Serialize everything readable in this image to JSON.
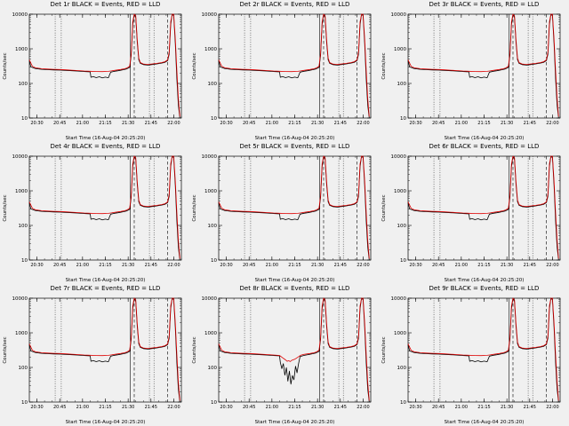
{
  "page": {
    "background": "#f0f0f0"
  },
  "chart_data": {
    "type": "line",
    "layout": "3x3-grid",
    "xlabel": "Start Time (16-Aug-04 20:25:20)",
    "ylabel": "Counts/sec",
    "yscale": "log",
    "ylim": [
      10,
      10000
    ],
    "y_ticks": [
      10,
      100,
      1000,
      10000
    ],
    "x_minutes_range": [
      0,
      100
    ],
    "x_ticks": [
      {
        "t": 5,
        "label": "20:30"
      },
      {
        "t": 20,
        "label": "20:45"
      },
      {
        "t": 35,
        "label": "21:00"
      },
      {
        "t": 50,
        "label": "21:15"
      },
      {
        "t": 65,
        "label": "21:30"
      },
      {
        "t": 80,
        "label": "21:45"
      },
      {
        "t": 95,
        "label": "22:00"
      }
    ],
    "legend": {
      "black": "Events",
      "red": "LLD"
    },
    "colors": {
      "events": "#000000",
      "lld": "#dd0000"
    },
    "ref_lines": [
      {
        "t": 17,
        "style": "dotted"
      },
      {
        "t": 21,
        "style": "dotted"
      },
      {
        "t": 66.5,
        "style": "solid"
      },
      {
        "t": 69,
        "style": "dashed"
      },
      {
        "t": 79,
        "style": "dotted"
      },
      {
        "t": 82,
        "style": "dotted"
      },
      {
        "t": 91,
        "style": "dashed"
      }
    ],
    "series_library": {
      "events_base": [
        [
          0,
          450
        ],
        [
          1,
          300
        ],
        [
          4,
          270
        ],
        [
          8,
          255
        ],
        [
          12,
          250
        ],
        [
          16,
          246
        ],
        [
          20,
          243
        ],
        [
          24,
          238
        ],
        [
          28,
          233
        ],
        [
          32,
          227
        ],
        [
          36,
          221
        ],
        [
          40,
          216
        ],
        [
          40.5,
          150
        ],
        [
          42,
          158
        ],
        [
          44,
          147
        ],
        [
          46,
          156
        ],
        [
          48,
          144
        ],
        [
          50,
          152
        ],
        [
          52,
          146
        ],
        [
          53.5,
          212
        ],
        [
          56,
          224
        ],
        [
          58,
          231
        ],
        [
          60,
          240
        ],
        [
          62,
          250
        ],
        [
          64,
          262
        ],
        [
          66,
          292
        ],
        [
          67,
          650
        ],
        [
          68,
          5000
        ],
        [
          69,
          12000
        ],
        [
          70,
          8000
        ],
        [
          71,
          1500
        ],
        [
          72,
          480
        ],
        [
          73,
          380
        ],
        [
          75,
          350
        ],
        [
          78,
          340
        ],
        [
          81,
          352
        ],
        [
          84,
          366
        ],
        [
          87,
          386
        ],
        [
          89,
          402
        ],
        [
          91,
          455
        ],
        [
          92,
          700
        ],
        [
          93,
          5000
        ],
        [
          94,
          12000
        ],
        [
          95,
          9000
        ],
        [
          96,
          1400
        ],
        [
          97,
          140
        ],
        [
          98,
          24
        ],
        [
          99,
          9
        ]
      ],
      "lld_base": [
        [
          0,
          480
        ],
        [
          2,
          312
        ],
        [
          4,
          282
        ],
        [
          8,
          266
        ],
        [
          12,
          261
        ],
        [
          16,
          256
        ],
        [
          20,
          252
        ],
        [
          24,
          247
        ],
        [
          28,
          241
        ],
        [
          32,
          235
        ],
        [
          36,
          229
        ],
        [
          40,
          225
        ],
        [
          44,
          221
        ],
        [
          48,
          219
        ],
        [
          52,
          223
        ],
        [
          54,
          230
        ],
        [
          56,
          238
        ],
        [
          58,
          245
        ],
        [
          60,
          252
        ],
        [
          62,
          262
        ],
        [
          64,
          276
        ],
        [
          66,
          315
        ],
        [
          67,
          750
        ],
        [
          68,
          6000
        ],
        [
          69,
          13000
        ],
        [
          70,
          9000
        ],
        [
          71,
          1800
        ],
        [
          72,
          540
        ],
        [
          73,
          400
        ],
        [
          75,
          364
        ],
        [
          78,
          354
        ],
        [
          81,
          366
        ],
        [
          84,
          380
        ],
        [
          87,
          400
        ],
        [
          89,
          420
        ],
        [
          91,
          478
        ],
        [
          92,
          820
        ],
        [
          93,
          6000
        ],
        [
          94,
          13000
        ],
        [
          95,
          10000
        ],
        [
          96,
          1900
        ],
        [
          97,
          240
        ],
        [
          98,
          38
        ],
        [
          99,
          11
        ]
      ],
      "events_det8": [
        [
          0,
          450
        ],
        [
          1,
          300
        ],
        [
          4,
          270
        ],
        [
          8,
          255
        ],
        [
          12,
          250
        ],
        [
          16,
          246
        ],
        [
          20,
          243
        ],
        [
          24,
          238
        ],
        [
          28,
          233
        ],
        [
          32,
          227
        ],
        [
          36,
          221
        ],
        [
          40,
          215
        ],
        [
          40.5,
          140
        ],
        [
          41.5,
          92
        ],
        [
          42.5,
          128
        ],
        [
          43.5,
          60
        ],
        [
          44.5,
          98
        ],
        [
          45.5,
          40
        ],
        [
          46.5,
          78
        ],
        [
          47.5,
          33
        ],
        [
          48.5,
          58
        ],
        [
          49.5,
          44
        ],
        [
          50.5,
          108
        ],
        [
          51.5,
          70
        ],
        [
          52.5,
          128
        ],
        [
          53.5,
          205
        ],
        [
          56,
          222
        ],
        [
          58,
          230
        ],
        [
          60,
          240
        ],
        [
          62,
          250
        ],
        [
          64,
          262
        ],
        [
          66,
          292
        ],
        [
          67,
          650
        ],
        [
          68,
          5000
        ],
        [
          69,
          12000
        ],
        [
          70,
          8000
        ],
        [
          71,
          1500
        ],
        [
          72,
          480
        ],
        [
          73,
          380
        ],
        [
          75,
          350
        ],
        [
          78,
          340
        ],
        [
          81,
          352
        ],
        [
          84,
          366
        ],
        [
          87,
          386
        ],
        [
          89,
          402
        ],
        [
          91,
          455
        ],
        [
          92,
          700
        ],
        [
          93,
          5000
        ],
        [
          94,
          12000
        ],
        [
          95,
          9000
        ],
        [
          96,
          1400
        ],
        [
          97,
          140
        ],
        [
          98,
          24
        ],
        [
          99,
          9
        ]
      ],
      "lld_det8": [
        [
          0,
          480
        ],
        [
          2,
          312
        ],
        [
          4,
          282
        ],
        [
          8,
          266
        ],
        [
          12,
          261
        ],
        [
          16,
          256
        ],
        [
          20,
          252
        ],
        [
          24,
          247
        ],
        [
          28,
          241
        ],
        [
          32,
          235
        ],
        [
          36,
          229
        ],
        [
          40,
          222
        ],
        [
          42,
          190
        ],
        [
          44,
          165
        ],
        [
          45,
          150
        ],
        [
          46,
          158
        ],
        [
          47,
          148
        ],
        [
          48,
          160
        ],
        [
          50,
          172
        ],
        [
          52,
          196
        ],
        [
          54,
          226
        ],
        [
          56,
          238
        ],
        [
          58,
          245
        ],
        [
          60,
          252
        ],
        [
          62,
          262
        ],
        [
          64,
          276
        ],
        [
          66,
          315
        ],
        [
          67,
          750
        ],
        [
          68,
          6000
        ],
        [
          69,
          13000
        ],
        [
          70,
          9000
        ],
        [
          71,
          1800
        ],
        [
          72,
          540
        ],
        [
          73,
          400
        ],
        [
          75,
          364
        ],
        [
          78,
          354
        ],
        [
          81,
          366
        ],
        [
          84,
          380
        ],
        [
          87,
          400
        ],
        [
          89,
          420
        ],
        [
          91,
          478
        ],
        [
          92,
          820
        ],
        [
          93,
          6000
        ],
        [
          94,
          13000
        ],
        [
          95,
          10000
        ],
        [
          96,
          1900
        ],
        [
          97,
          240
        ],
        [
          98,
          38
        ],
        [
          99,
          11
        ]
      ]
    },
    "panels": [
      {
        "det": "Det 1r",
        "title": "Det 1r BLACK = Events, RED = LLD",
        "black": "events_base",
        "red": "lld_base"
      },
      {
        "det": "Det 2r",
        "title": "Det 2r BLACK = Events, RED = LLD",
        "black": "events_base",
        "red": "lld_base"
      },
      {
        "det": "Det 3r",
        "title": "Det 3r BLACK = Events, RED = LLD",
        "black": "events_base",
        "red": "lld_base"
      },
      {
        "det": "Det 4r",
        "title": "Det 4r BLACK = Events, RED = LLD",
        "black": "events_base",
        "red": "lld_base"
      },
      {
        "det": "Det 5r",
        "title": "Det 5r BLACK = Events, RED = LLD",
        "black": "events_base",
        "red": "lld_base"
      },
      {
        "det": "Det 6r",
        "title": "Det 6r BLACK = Events, RED = LLD",
        "black": "events_base",
        "red": "lld_base"
      },
      {
        "det": "Det 7r",
        "title": "Det 7r BLACK = Events, RED = LLD",
        "black": "events_base",
        "red": "lld_base"
      },
      {
        "det": "Det 8r",
        "title": "Det 8r BLACK = Events, RED = LLD",
        "black": "events_det8",
        "red": "lld_det8"
      },
      {
        "det": "Det 9r",
        "title": "Det 9r BLACK = Events, RED = LLD",
        "black": "events_base",
        "red": "lld_base"
      }
    ]
  }
}
